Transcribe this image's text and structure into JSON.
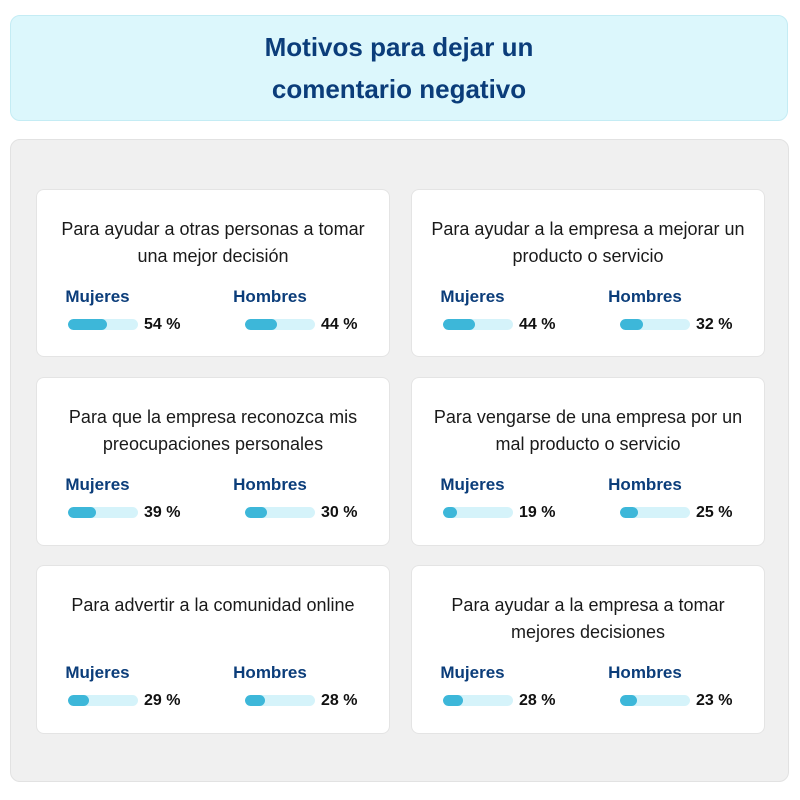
{
  "title": "Motivos para dejar un comentario negativo",
  "labels": {
    "women": "Mujeres",
    "men": "Hombres"
  },
  "colors": {
    "bar_fill": "#3db7d9",
    "bar_track": "#d5f3fa",
    "title": "#0b3d7a"
  },
  "chart_data": {
    "type": "bar",
    "title": "Motivos para dejar un comentario negativo",
    "categories": [
      "Para ayudar a otras personas a tomar una mejor decisión",
      "Para ayudar a la empresa a mejorar un producto o servicio",
      "Para que la empresa reconozca mis preocupaciones personales",
      "Para vengarse de una empresa por un mal producto o servicio",
      "Para advertir a la comunidad online",
      "Para ayudar a la empresa a tomar mejores decisiones"
    ],
    "series": [
      {
        "name": "Mujeres",
        "values": [
          54,
          44,
          39,
          19,
          29,
          28
        ],
        "labels": [
          "54 %",
          "44 %",
          "39 %",
          "19 %",
          "29 %",
          "28 %"
        ]
      },
      {
        "name": "Hombres",
        "values": [
          44,
          32,
          30,
          25,
          28,
          23
        ],
        "labels": [
          "44 %",
          "32 %",
          "30 %",
          "25 %",
          "28 %",
          "23 %"
        ]
      }
    ],
    "ylim": [
      0,
      100
    ]
  }
}
